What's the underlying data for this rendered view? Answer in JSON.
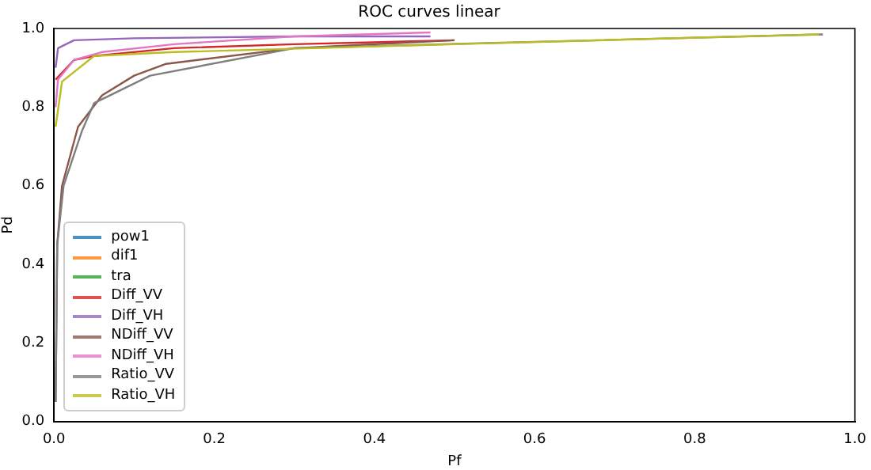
{
  "chart_data": {
    "type": "line",
    "title": "ROC curves linear",
    "xlabel": "Pf",
    "ylabel": "Pd",
    "xlim": [
      0,
      1
    ],
    "ylim": [
      0,
      1
    ],
    "xticks": [
      {
        "value": 0,
        "label": "0.0"
      },
      {
        "value": 0.2,
        "label": "0.2"
      },
      {
        "value": 0.4,
        "label": "0.4"
      },
      {
        "value": 0.6,
        "label": "0.6"
      },
      {
        "value": 0.8,
        "label": "0.8"
      },
      {
        "value": 1,
        "label": "1.0"
      }
    ],
    "yticks": [
      {
        "value": 0,
        "label": "0.0"
      },
      {
        "value": 0.2,
        "label": "0.2"
      },
      {
        "value": 0.4,
        "label": "0.4"
      },
      {
        "value": 0.6,
        "label": "0.6"
      },
      {
        "value": 0.8,
        "label": "0.8"
      },
      {
        "value": 1,
        "label": "1.0"
      }
    ],
    "grid": false,
    "legend": "bottom left",
    "marker": "none",
    "line_style": "solid",
    "series": [
      {
        "name": "pow1",
        "color": "#1f77b4"
      },
      {
        "name": "dif1",
        "color": "#ff7f0e"
      },
      {
        "name": "tra",
        "color": "#2ca02c"
      },
      {
        "name": "Diff_VV",
        "color": "#d62728",
        "x": [
          0.002,
          0.025,
          0.05,
          0.15,
          0.3,
          0.5
        ],
        "values": [
          0.87,
          0.92,
          0.93,
          0.95,
          0.96,
          0.97
        ]
      },
      {
        "name": "Diff_VH",
        "color": "#9467bd",
        "x": [
          0.002,
          0.005,
          0.025,
          0.1,
          0.3,
          0.47
        ],
        "values": [
          0.9,
          0.95,
          0.97,
          0.975,
          0.98,
          0.98
        ]
      },
      {
        "name": "NDiff_VV",
        "color": "#8c564b",
        "x": [
          0.002,
          0.004,
          0.01,
          0.03,
          0.06,
          0.1,
          0.14,
          0.3,
          0.5
        ],
        "values": [
          0.05,
          0.45,
          0.6,
          0.75,
          0.83,
          0.88,
          0.91,
          0.95,
          0.97
        ]
      },
      {
        "name": "NDiff_VH",
        "color": "#e377c2",
        "x": [
          0.002,
          0.005,
          0.025,
          0.06,
          0.15,
          0.3,
          0.47
        ],
        "values": [
          0.8,
          0.87,
          0.92,
          0.94,
          0.96,
          0.98,
          0.99
        ]
      },
      {
        "name": "Ratio_VV",
        "color": "#7f7f7f",
        "x": [
          0.002,
          0.004,
          0.012,
          0.035,
          0.05,
          0.12,
          0.3,
          0.96
        ],
        "values": [
          0.05,
          0.45,
          0.6,
          0.74,
          0.81,
          0.88,
          0.95,
          0.985
        ]
      },
      {
        "name": "Ratio_VH",
        "color": "#bcbd22",
        "x": [
          0.002,
          0.01,
          0.05,
          0.15,
          0.5,
          0.955
        ],
        "values": [
          0.75,
          0.865,
          0.93,
          0.94,
          0.96,
          0.985
        ]
      }
    ]
  }
}
